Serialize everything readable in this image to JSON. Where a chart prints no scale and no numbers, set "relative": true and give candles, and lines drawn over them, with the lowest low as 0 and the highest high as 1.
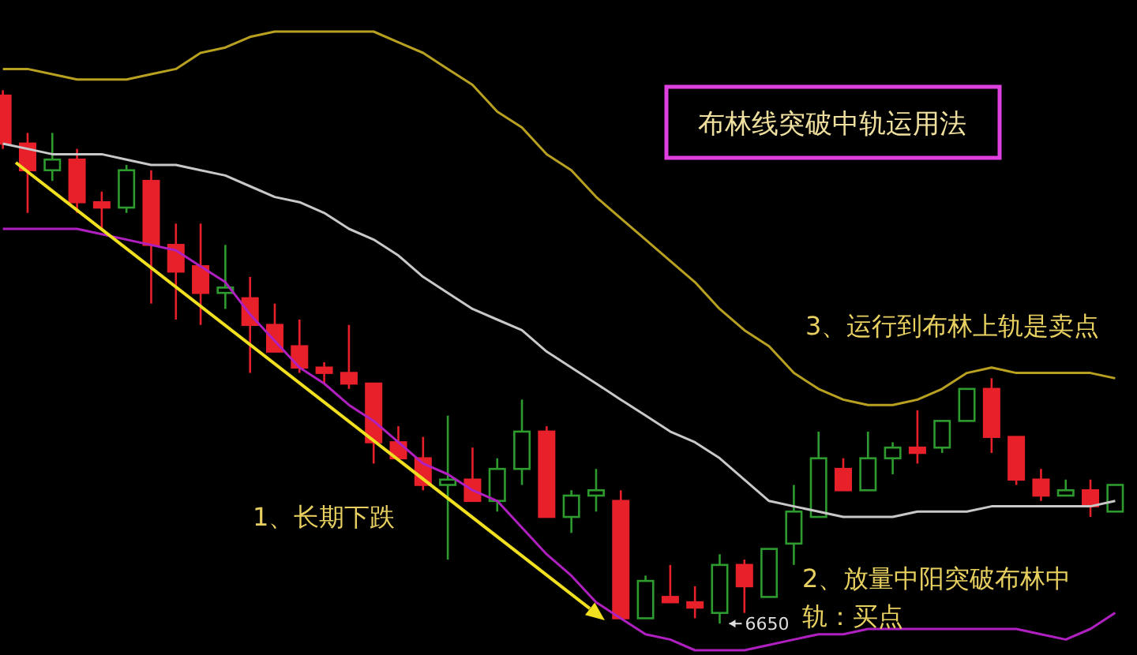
{
  "chart_data": {
    "type": "candlestick",
    "title": "布林线突破中轨运用法",
    "relative": true,
    "categories": [
      null,
      null,
      null,
      null,
      null,
      null,
      null,
      null,
      null,
      null,
      null,
      null,
      null,
      null,
      null,
      null,
      null,
      null,
      null,
      null,
      null,
      null,
      null,
      null,
      null,
      null,
      null,
      null,
      null,
      null,
      null,
      null,
      null,
      null,
      null,
      null,
      null,
      null,
      null,
      null,
      null,
      null,
      null,
      null,
      null,
      null
    ],
    "ohlc": [
      [
        0.99,
        1,
        0.89,
        0.9
      ],
      [
        0.9,
        0.92,
        0.77,
        0.85
      ],
      [
        0.85,
        0.92,
        0.83,
        0.87
      ],
      [
        0.87,
        0.89,
        0.77,
        0.79
      ],
      [
        0.79,
        0.81,
        0.74,
        0.78
      ],
      [
        0.78,
        0.86,
        0.77,
        0.85
      ],
      [
        0.83,
        0.85,
        0.6,
        0.71
      ],
      [
        0.71,
        0.75,
        0.57,
        0.66
      ],
      [
        0.67,
        0.75,
        0.56,
        0.62
      ],
      [
        0.62,
        0.71,
        0.59,
        0.63
      ],
      [
        0.61,
        0.65,
        0.47,
        0.56
      ],
      [
        0.56,
        0.6,
        0.51,
        0.51
      ],
      [
        0.52,
        0.57,
        0.47,
        0.48
      ],
      [
        0.48,
        0.49,
        0.45,
        0.47
      ],
      [
        0.47,
        0.56,
        0.44,
        0.45
      ],
      [
        0.45,
        0.45,
        0.3,
        0.34
      ],
      [
        0.34,
        0.37,
        0.31,
        0.31
      ],
      [
        0.31,
        0.35,
        0.25,
        0.26
      ],
      [
        0.26,
        0.39,
        0.12,
        0.27
      ],
      [
        0.27,
        0.33,
        0.23,
        0.23
      ],
      [
        0.23,
        0.31,
        0.21,
        0.29
      ],
      [
        0.29,
        0.42,
        0.26,
        0.36
      ],
      [
        0.36,
        0.37,
        0.2,
        0.2
      ],
      [
        0.2,
        0.25,
        0.17,
        0.24
      ],
      [
        0.24,
        0.29,
        0.21,
        0.25
      ],
      [
        0.23,
        0.25,
        0.01,
        0.01
      ],
      [
        0.01,
        0.09,
        0.01,
        0.08
      ],
      [
        0.05,
        0.11,
        0.04,
        0.04
      ],
      [
        0.04,
        0.07,
        0.01,
        0.03
      ],
      [
        0.02,
        0.13,
        0,
        0.11
      ],
      [
        0.11,
        0.12,
        0.02,
        0.07
      ],
      [
        0.05,
        0.14,
        0.05,
        0.14
      ],
      [
        0.15,
        0.26,
        0.11,
        0.21
      ],
      [
        0.2,
        0.36,
        0.2,
        0.31
      ],
      [
        0.29,
        0.31,
        0.25,
        0.25
      ],
      [
        0.25,
        0.36,
        0.25,
        0.31
      ],
      [
        0.31,
        0.34,
        0.28,
        0.33
      ],
      [
        0.33,
        0.4,
        0.3,
        0.32
      ],
      [
        0.33,
        0.38,
        0.32,
        0.38
      ],
      [
        0.38,
        0.44,
        0.38,
        0.44
      ],
      [
        0.44,
        0.46,
        0.32,
        0.35
      ],
      [
        0.35,
        0.35,
        0.26,
        0.27
      ],
      [
        0.27,
        0.29,
        0.23,
        0.24
      ],
      [
        0.24,
        0.27,
        0.24,
        0.25
      ],
      [
        0.25,
        0.27,
        0.2,
        0.22
      ],
      [
        0.21,
        0.26,
        0.21,
        0.26
      ]
    ],
    "colors": [
      "#e8202a",
      "#e8202a",
      "#2e9b2e",
      "#e8202a",
      "#e8202a",
      "#2e9b2e",
      "#e8202a",
      "#e8202a",
      "#e8202a",
      "#2e9b2e",
      "#e8202a",
      "#e8202a",
      "#e8202a",
      "#e8202a",
      "#e8202a",
      "#e8202a",
      "#e8202a",
      "#e8202a",
      "#2e9b2e",
      "#e8202a",
      "#2e9b2e",
      "#2e9b2e",
      "#e8202a",
      "#2e9b2e",
      "#2e9b2e",
      "#e8202a",
      "#2e9b2e",
      "#e8202a",
      "#e8202a",
      "#2e9b2e",
      "#e8202a",
      "#2e9b2e",
      "#2e9b2e",
      "#2e9b2e",
      "#e8202a",
      "#2e9b2e",
      "#2e9b2e",
      "#e8202a",
      "#2e9b2e",
      "#2e9b2e",
      "#e8202a",
      "#e8202a",
      "#e8202a",
      "#2e9b2e",
      "#e8202a",
      "#2e9b2e"
    ],
    "series": [
      {
        "type": "line",
        "color": "#b8a020",
        "values": [
          1.04,
          1.04,
          1.03,
          1.02,
          1.02,
          1.02,
          1.03,
          1.04,
          1.07,
          1.08,
          1.1,
          1.11,
          1.11,
          1.11,
          1.11,
          1.11,
          1.09,
          1.07,
          1.04,
          1.01,
          0.96,
          0.93,
          0.88,
          0.85,
          0.8,
          0.76,
          0.72,
          0.68,
          0.64,
          0.59,
          0.55,
          0.52,
          0.47,
          0.44,
          0.42,
          0.41,
          0.41,
          0.42,
          0.44,
          0.47,
          0.48,
          0.47,
          0.47,
          0.47,
          0.47,
          0.46
        ]
      },
      {
        "type": "line",
        "color": "#c8c8c8",
        "values": [
          0.9,
          0.89,
          0.88,
          0.88,
          0.88,
          0.87,
          0.86,
          0.86,
          0.85,
          0.84,
          0.82,
          0.8,
          0.79,
          0.77,
          0.74,
          0.72,
          0.69,
          0.65,
          0.62,
          0.59,
          0.57,
          0.55,
          0.51,
          0.48,
          0.45,
          0.42,
          0.39,
          0.36,
          0.34,
          0.31,
          0.27,
          0.23,
          0.22,
          0.21,
          0.2,
          0.2,
          0.2,
          0.21,
          0.21,
          0.21,
          0.22,
          0.22,
          0.22,
          0.22,
          0.22,
          0.23
        ]
      },
      {
        "type": "line",
        "color": "#b020c0",
        "values": [
          0.74,
          0.74,
          0.74,
          0.74,
          0.73,
          0.72,
          0.71,
          0.7,
          0.67,
          0.64,
          0.58,
          0.53,
          0.48,
          0.45,
          0.41,
          0.38,
          0.34,
          0.3,
          0.28,
          0.25,
          0.23,
          0.18,
          0.13,
          0.09,
          0.04,
          0.01,
          -0.02,
          -0.03,
          -0.05,
          -0.05,
          -0.05,
          -0.04,
          -0.03,
          -0.02,
          -0.02,
          -0.01,
          -0.01,
          -0.01,
          -0.01,
          -0.01,
          -0.01,
          -0.01,
          -0.02,
          -0.03,
          -0.01,
          0.02
        ]
      }
    ],
    "annotations": [
      "1、长期下跌",
      "2、放量中阳突破布林中轨：买点",
      "3、运行到布林上轨是卖点",
      "6650"
    ]
  }
}
